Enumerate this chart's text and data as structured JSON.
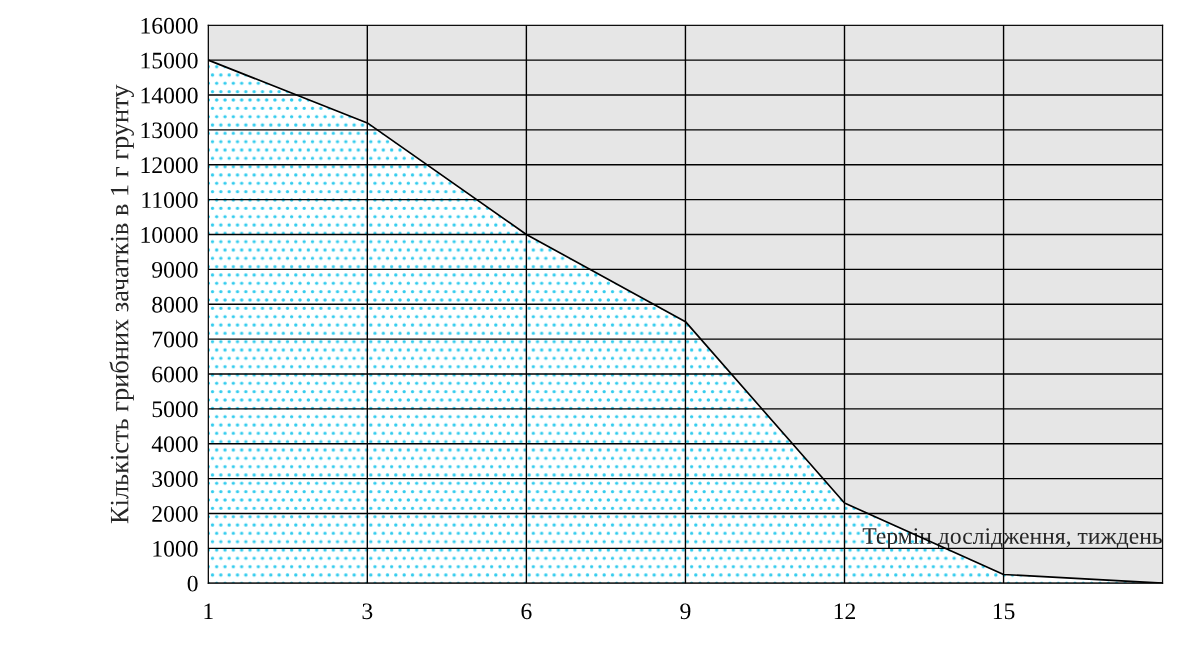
{
  "chart_data": {
    "type": "area",
    "xlabel": "Термін дослідження, тиждень",
    "ylabel": "Кількість грибних зачатків в 1 г грунту",
    "categories": [
      "1",
      "3",
      "6",
      "9",
      "12",
      "15",
      null
    ],
    "series": [
      {
        "color": "#33ccee",
        "values": [
          15000,
          13200,
          10000,
          7500,
          2300,
          250,
          0
        ]
      }
    ],
    "ylim": [
      0,
      16000
    ],
    "yticks": [
      0,
      1000,
      2000,
      3000,
      4000,
      5000,
      6000,
      7000,
      8000,
      9000,
      10000,
      11000,
      12000,
      13000,
      14000,
      15000,
      16000
    ],
    "grid": true,
    "legend": false
  }
}
